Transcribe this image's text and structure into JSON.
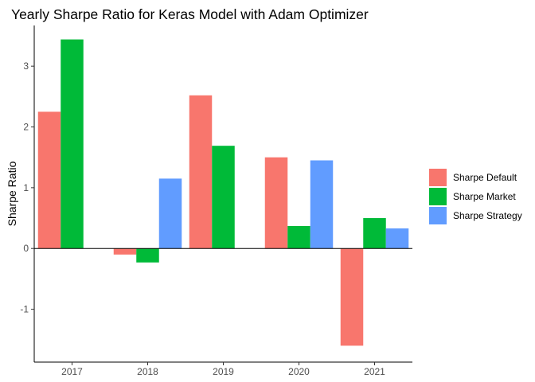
{
  "chart_data": {
    "type": "bar",
    "title": "Yearly Sharpe Ratio for Keras Model with Adam Optimizer",
    "xlabel": "",
    "ylabel": "Sharpe Ratio",
    "categories": [
      "2017",
      "2018",
      "2019",
      "2020",
      "2021"
    ],
    "series": [
      {
        "name": "Sharpe Default",
        "color": "#F8766D",
        "values": [
          2.25,
          -0.1,
          2.52,
          1.5,
          -1.6
        ]
      },
      {
        "name": "Sharpe Market",
        "color": "#00BA38",
        "values": [
          3.44,
          -0.23,
          1.69,
          0.37,
          0.5
        ]
      },
      {
        "name": "Sharpe Strategy",
        "color": "#619CFF",
        "values": [
          null,
          1.15,
          null,
          1.45,
          0.33
        ]
      }
    ],
    "ylim": [
      -1.87,
      3.67
    ],
    "yticks": [
      -1,
      0,
      1,
      2,
      3
    ],
    "grid": false,
    "zero_line": true,
    "legend_position": "right"
  }
}
